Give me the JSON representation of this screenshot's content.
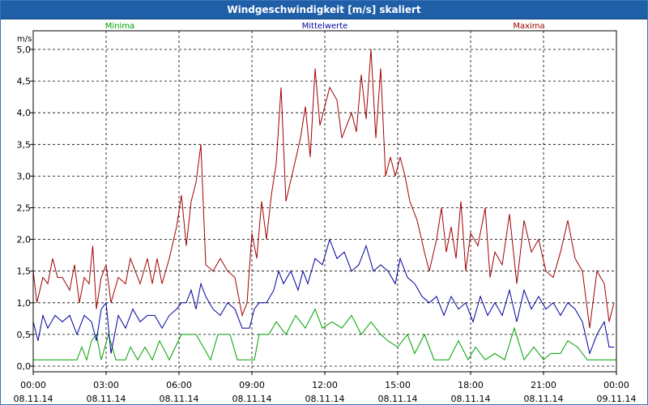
{
  "chart_data": {
    "type": "line",
    "title": "Windgeschwindigkeit [m/s] skaliert",
    "ylabel": "m/s",
    "ylim": [
      0,
      5
    ],
    "yticks": [
      "0,0",
      "0,5",
      "1,0",
      "1,5",
      "2,0",
      "2,5",
      "3,0",
      "3,5",
      "4,0",
      "4,5",
      "5,0"
    ],
    "xticks": [
      {
        "time": "00:00",
        "date": "08.11.14"
      },
      {
        "time": "03:00",
        "date": "08.11.14"
      },
      {
        "time": "06:00",
        "date": "08.11.14"
      },
      {
        "time": "09:00",
        "date": "08.11.14"
      },
      {
        "time": "12:00",
        "date": "08.11.14"
      },
      {
        "time": "15:00",
        "date": "08.11.14"
      },
      {
        "time": "18:00",
        "date": "08.11.14"
      },
      {
        "time": "21:00",
        "date": "08.11.14"
      },
      {
        "time": "00:00",
        "date": "09.11.14"
      }
    ],
    "x_hours": [
      0,
      24
    ],
    "grid": true,
    "series": [
      {
        "name": "Minima",
        "color": "#00a000",
        "legend_position": "left",
        "points": [
          [
            0,
            0.1
          ],
          [
            1.8,
            0.1
          ],
          [
            2.0,
            0.3
          ],
          [
            2.2,
            0.1
          ],
          [
            2.4,
            0.4
          ],
          [
            2.6,
            0.5
          ],
          [
            2.8,
            0.1
          ],
          [
            3.1,
            0.5
          ],
          [
            3.4,
            0.1
          ],
          [
            3.8,
            0.1
          ],
          [
            4.0,
            0.3
          ],
          [
            4.3,
            0.1
          ],
          [
            4.6,
            0.3
          ],
          [
            4.9,
            0.1
          ],
          [
            5.2,
            0.4
          ],
          [
            5.6,
            0.1
          ],
          [
            6.1,
            0.5
          ],
          [
            6.7,
            0.5
          ],
          [
            7.0,
            0.3
          ],
          [
            7.3,
            0.1
          ],
          [
            7.6,
            0.5
          ],
          [
            8.1,
            0.5
          ],
          [
            8.4,
            0.1
          ],
          [
            9.1,
            0.1
          ],
          [
            9.3,
            0.5
          ],
          [
            9.7,
            0.5
          ],
          [
            10.0,
            0.7
          ],
          [
            10.4,
            0.5
          ],
          [
            10.8,
            0.8
          ],
          [
            11.2,
            0.6
          ],
          [
            11.6,
            0.9
          ],
          [
            11.9,
            0.6
          ],
          [
            12.3,
            0.7
          ],
          [
            12.7,
            0.6
          ],
          [
            13.1,
            0.8
          ],
          [
            13.5,
            0.5
          ],
          [
            13.9,
            0.7
          ],
          [
            14.3,
            0.5
          ],
          [
            14.6,
            0.4
          ],
          [
            15.0,
            0.3
          ],
          [
            15.4,
            0.5
          ],
          [
            15.7,
            0.2
          ],
          [
            16.1,
            0.5
          ],
          [
            16.5,
            0.1
          ],
          [
            17.1,
            0.1
          ],
          [
            17.5,
            0.4
          ],
          [
            17.9,
            0.1
          ],
          [
            18.2,
            0.3
          ],
          [
            18.6,
            0.1
          ],
          [
            19.0,
            0.2
          ],
          [
            19.4,
            0.1
          ],
          [
            19.8,
            0.6
          ],
          [
            20.2,
            0.1
          ],
          [
            20.6,
            0.3
          ],
          [
            21.0,
            0.1
          ],
          [
            21.3,
            0.2
          ],
          [
            21.7,
            0.2
          ],
          [
            22.0,
            0.4
          ],
          [
            22.4,
            0.3
          ],
          [
            22.8,
            0.1
          ],
          [
            24.0,
            0.1
          ]
        ]
      },
      {
        "name": "Mittelwerte",
        "color": "#0000a0",
        "legend_position": "center",
        "points": [
          [
            0,
            0.7
          ],
          [
            0.2,
            0.4
          ],
          [
            0.4,
            0.8
          ],
          [
            0.6,
            0.6
          ],
          [
            0.9,
            0.8
          ],
          [
            1.2,
            0.7
          ],
          [
            1.5,
            0.8
          ],
          [
            1.8,
            0.5
          ],
          [
            2.1,
            0.8
          ],
          [
            2.4,
            0.7
          ],
          [
            2.6,
            0.4
          ],
          [
            2.8,
            0.9
          ],
          [
            3.0,
            1.0
          ],
          [
            3.2,
            0.2
          ],
          [
            3.5,
            0.8
          ],
          [
            3.8,
            0.6
          ],
          [
            4.1,
            0.9
          ],
          [
            4.4,
            0.7
          ],
          [
            4.7,
            0.8
          ],
          [
            5.0,
            0.8
          ],
          [
            5.3,
            0.6
          ],
          [
            5.6,
            0.8
          ],
          [
            5.9,
            0.9
          ],
          [
            6.1,
            1.0
          ],
          [
            6.3,
            1.0
          ],
          [
            6.5,
            1.2
          ],
          [
            6.7,
            0.9
          ],
          [
            6.9,
            1.3
          ],
          [
            7.1,
            1.1
          ],
          [
            7.4,
            0.9
          ],
          [
            7.7,
            0.8
          ],
          [
            8.0,
            1.0
          ],
          [
            8.3,
            0.9
          ],
          [
            8.6,
            0.6
          ],
          [
            8.9,
            0.6
          ],
          [
            9.1,
            0.9
          ],
          [
            9.3,
            1.0
          ],
          [
            9.6,
            1.0
          ],
          [
            9.9,
            1.2
          ],
          [
            10.1,
            1.5
          ],
          [
            10.3,
            1.3
          ],
          [
            10.6,
            1.5
          ],
          [
            10.9,
            1.2
          ],
          [
            11.1,
            1.5
          ],
          [
            11.3,
            1.3
          ],
          [
            11.6,
            1.7
          ],
          [
            11.9,
            1.6
          ],
          [
            12.2,
            2.0
          ],
          [
            12.5,
            1.7
          ],
          [
            12.8,
            1.8
          ],
          [
            13.1,
            1.5
          ],
          [
            13.4,
            1.6
          ],
          [
            13.7,
            1.9
          ],
          [
            14.0,
            1.5
          ],
          [
            14.3,
            1.6
          ],
          [
            14.6,
            1.5
          ],
          [
            14.9,
            1.3
          ],
          [
            15.1,
            1.7
          ],
          [
            15.4,
            1.4
          ],
          [
            15.7,
            1.3
          ],
          [
            16.0,
            1.1
          ],
          [
            16.3,
            1.0
          ],
          [
            16.6,
            1.1
          ],
          [
            16.9,
            0.8
          ],
          [
            17.2,
            1.1
          ],
          [
            17.5,
            0.9
          ],
          [
            17.8,
            1.0
          ],
          [
            18.1,
            0.7
          ],
          [
            18.4,
            1.1
          ],
          [
            18.7,
            0.8
          ],
          [
            19.0,
            1.0
          ],
          [
            19.3,
            0.8
          ],
          [
            19.6,
            1.2
          ],
          [
            19.9,
            0.7
          ],
          [
            20.2,
            1.2
          ],
          [
            20.5,
            0.9
          ],
          [
            20.8,
            1.1
          ],
          [
            21.1,
            0.9
          ],
          [
            21.4,
            1.0
          ],
          [
            21.7,
            0.8
          ],
          [
            22.0,
            1.0
          ],
          [
            22.3,
            0.9
          ],
          [
            22.6,
            0.7
          ],
          [
            22.9,
            0.2
          ],
          [
            23.2,
            0.5
          ],
          [
            23.5,
            0.7
          ],
          [
            23.7,
            0.3
          ],
          [
            23.9,
            0.3
          ]
        ]
      },
      {
        "name": "Maxima",
        "color": "#a00000",
        "legend_position": "right",
        "points": [
          [
            0,
            1.5
          ],
          [
            0.15,
            1.0
          ],
          [
            0.4,
            1.4
          ],
          [
            0.6,
            1.3
          ],
          [
            0.8,
            1.7
          ],
          [
            1.0,
            1.4
          ],
          [
            1.2,
            1.4
          ],
          [
            1.5,
            1.2
          ],
          [
            1.7,
            1.6
          ],
          [
            1.9,
            1.0
          ],
          [
            2.1,
            1.4
          ],
          [
            2.3,
            1.3
          ],
          [
            2.45,
            1.9
          ],
          [
            2.6,
            0.9
          ],
          [
            2.8,
            1.4
          ],
          [
            3.0,
            1.6
          ],
          [
            3.2,
            1.0
          ],
          [
            3.5,
            1.4
          ],
          [
            3.8,
            1.3
          ],
          [
            4.0,
            1.7
          ],
          [
            4.2,
            1.5
          ],
          [
            4.4,
            1.3
          ],
          [
            4.7,
            1.7
          ],
          [
            4.9,
            1.3
          ],
          [
            5.1,
            1.7
          ],
          [
            5.3,
            1.3
          ],
          [
            5.6,
            1.7
          ],
          [
            5.9,
            2.2
          ],
          [
            6.1,
            2.7
          ],
          [
            6.3,
            1.9
          ],
          [
            6.5,
            2.6
          ],
          [
            6.7,
            2.9
          ],
          [
            6.9,
            3.5
          ],
          [
            7.1,
            1.6
          ],
          [
            7.4,
            1.5
          ],
          [
            7.7,
            1.7
          ],
          [
            8.0,
            1.5
          ],
          [
            8.3,
            1.4
          ],
          [
            8.6,
            0.8
          ],
          [
            8.8,
            1.0
          ],
          [
            9.0,
            2.1
          ],
          [
            9.2,
            1.7
          ],
          [
            9.4,
            2.6
          ],
          [
            9.6,
            2.0
          ],
          [
            9.8,
            2.7
          ],
          [
            10.0,
            3.2
          ],
          [
            10.2,
            4.4
          ],
          [
            10.4,
            2.6
          ],
          [
            10.7,
            3.1
          ],
          [
            11.0,
            3.6
          ],
          [
            11.2,
            4.1
          ],
          [
            11.4,
            3.3
          ],
          [
            11.6,
            4.7
          ],
          [
            11.8,
            3.8
          ],
          [
            12.0,
            4.1
          ],
          [
            12.2,
            4.4
          ],
          [
            12.5,
            4.2
          ],
          [
            12.7,
            3.6
          ],
          [
            12.9,
            3.8
          ],
          [
            13.1,
            4.0
          ],
          [
            13.3,
            3.7
          ],
          [
            13.5,
            4.6
          ],
          [
            13.7,
            3.9
          ],
          [
            13.9,
            5.0
          ],
          [
            14.1,
            3.6
          ],
          [
            14.3,
            4.7
          ],
          [
            14.5,
            3.0
          ],
          [
            14.7,
            3.3
          ],
          [
            14.9,
            3.0
          ],
          [
            15.1,
            3.3
          ],
          [
            15.3,
            3.0
          ],
          [
            15.5,
            2.6
          ],
          [
            15.8,
            2.3
          ],
          [
            16.1,
            1.8
          ],
          [
            16.3,
            1.5
          ],
          [
            16.6,
            2.0
          ],
          [
            16.8,
            2.5
          ],
          [
            17.0,
            1.8
          ],
          [
            17.2,
            2.2
          ],
          [
            17.4,
            1.7
          ],
          [
            17.6,
            2.6
          ],
          [
            17.8,
            1.5
          ],
          [
            18.0,
            2.1
          ],
          [
            18.3,
            1.9
          ],
          [
            18.6,
            2.5
          ],
          [
            18.8,
            1.4
          ],
          [
            19.0,
            1.8
          ],
          [
            19.3,
            1.6
          ],
          [
            19.6,
            2.4
          ],
          [
            19.9,
            1.3
          ],
          [
            20.2,
            2.3
          ],
          [
            20.5,
            1.8
          ],
          [
            20.8,
            2.0
          ],
          [
            21.1,
            1.5
          ],
          [
            21.4,
            1.4
          ],
          [
            21.7,
            1.8
          ],
          [
            22.0,
            2.3
          ],
          [
            22.3,
            1.7
          ],
          [
            22.6,
            1.5
          ],
          [
            22.9,
            0.6
          ],
          [
            23.2,
            1.5
          ],
          [
            23.5,
            1.3
          ],
          [
            23.7,
            0.7
          ],
          [
            23.9,
            1.0
          ]
        ]
      }
    ]
  }
}
